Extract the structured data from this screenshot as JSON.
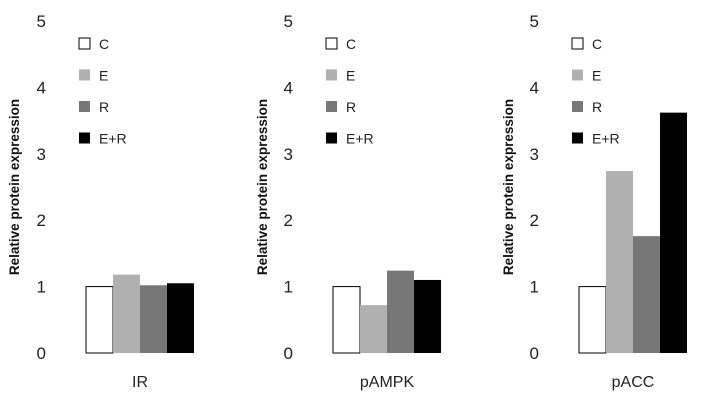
{
  "series_names": [
    "C",
    "E",
    "R",
    "E+R"
  ],
  "colors": {
    "C": "#ffffff",
    "E": "#b0b0b0",
    "R": "#777777",
    "E+R": "#000000"
  },
  "chart_data": [
    {
      "type": "bar",
      "xlabel": "IR",
      "ylabel": "Relative protein expression",
      "ylim": [
        0,
        5
      ],
      "yticks": [
        "0",
        "1",
        "2",
        "3",
        "4",
        "5"
      ],
      "legend": "top-left",
      "series": [
        {
          "name": "C",
          "values": [
            1.0
          ]
        },
        {
          "name": "E",
          "values": [
            1.18
          ]
        },
        {
          "name": "R",
          "values": [
            1.02
          ]
        },
        {
          "name": "E+R",
          "values": [
            1.05
          ]
        }
      ]
    },
    {
      "type": "bar",
      "xlabel": "pAMPK",
      "ylabel": "Relative protein expression",
      "ylim": [
        0,
        5
      ],
      "yticks": [
        "0",
        "1",
        "2",
        "3",
        "4",
        "5"
      ],
      "legend": "top-left",
      "series": [
        {
          "name": "C",
          "values": [
            1.0
          ]
        },
        {
          "name": "E",
          "values": [
            0.72
          ]
        },
        {
          "name": "R",
          "values": [
            1.24
          ]
        },
        {
          "name": "E+R",
          "values": [
            1.1
          ]
        }
      ]
    },
    {
      "type": "bar",
      "xlabel": "pACC",
      "ylabel": "Relative protein expression",
      "ylim": [
        0,
        5
      ],
      "yticks": [
        "0",
        "1",
        "2",
        "3",
        "4",
        "5"
      ],
      "legend": "top-left",
      "series": [
        {
          "name": "C",
          "values": [
            1.0
          ]
        },
        {
          "name": "E",
          "values": [
            2.74
          ]
        },
        {
          "name": "R",
          "values": [
            1.76
          ]
        },
        {
          "name": "E+R",
          "values": [
            3.62
          ]
        }
      ]
    }
  ]
}
